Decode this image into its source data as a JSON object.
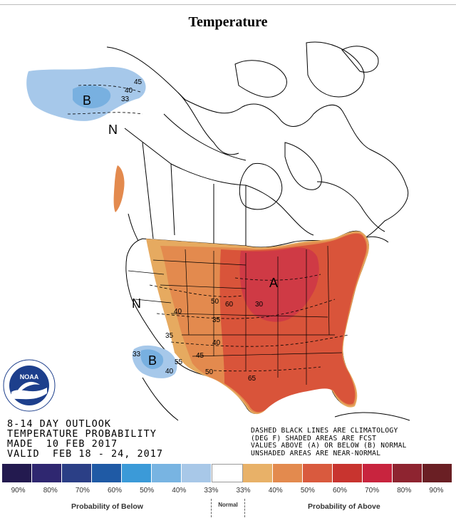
{
  "title": "Temperature",
  "outlook_lines": [
    "8-14 DAY OUTLOOK",
    "TEMPERATURE PROBABILITY",
    "MADE  10 FEB 2017",
    "VALID  FEB 18 - 24, 2017"
  ],
  "notes_lines": [
    "DASHED BLACK LINES ARE CLIMATOLOGY",
    "(DEG F) SHADED AREAS ARE FCST",
    "VALUES ABOVE (A) OR BELOW (B) NORMAL",
    "UNSHADED AREAS ARE NEAR-NORMAL"
  ],
  "legend": {
    "colors": [
      "#231a4f",
      "#2f2770",
      "#2b3f86",
      "#1f5aa5",
      "#3b9ad8",
      "#78b4e2",
      "#a8c8e8",
      "#ffffff",
      "#e8b168",
      "#e38a4e",
      "#d95a3e",
      "#c8342f",
      "#c8243e",
      "#8e2430",
      "#6a1f24"
    ],
    "labels": [
      "90%",
      "80%",
      "70%",
      "60%",
      "50%",
      "40%",
      "33%",
      "33%",
      "40%",
      "50%",
      "60%",
      "70%",
      "80%",
      "90%"
    ],
    "below_label": "Probability of Below",
    "normal_label": "Normal",
    "above_label": "Probability of Above"
  },
  "map": {
    "category_labels": [
      "B",
      "N",
      "A",
      "N",
      "B"
    ],
    "contour_labels": [
      "45",
      "40",
      "33",
      "50",
      "60",
      "30",
      "40",
      "35",
      "45",
      "40",
      "35",
      "50",
      "55",
      "65",
      "33",
      "40"
    ],
    "colors": {
      "above_40": "#e6aa60",
      "above_50": "#e38a4e",
      "above_60": "#d9543a",
      "above_70": "#cf3a45",
      "below_40": "#78b0e0",
      "below_33": "#a6c8ea",
      "land_line": "#000000"
    }
  },
  "logo_text": "NOAA"
}
